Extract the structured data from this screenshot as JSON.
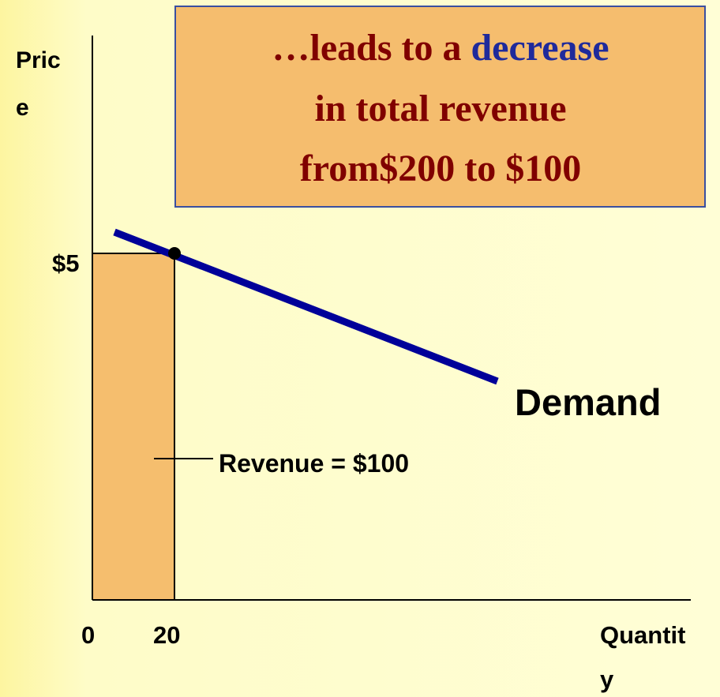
{
  "callout": {
    "lines": [
      [
        "…leads to a ",
        "decrease"
      ],
      [
        "in total revenue"
      ],
      [
        "from$200 to $100"
      ]
    ]
  },
  "y_axis_label": [
    "Pric",
    "e"
  ],
  "x_axis_label": [
    "Quantit",
    "y"
  ],
  "y_tick": "$5",
  "x_ticks": [
    "0",
    "20"
  ],
  "curve_label": "Demand",
  "area_label": "Revenue = $100"
}
